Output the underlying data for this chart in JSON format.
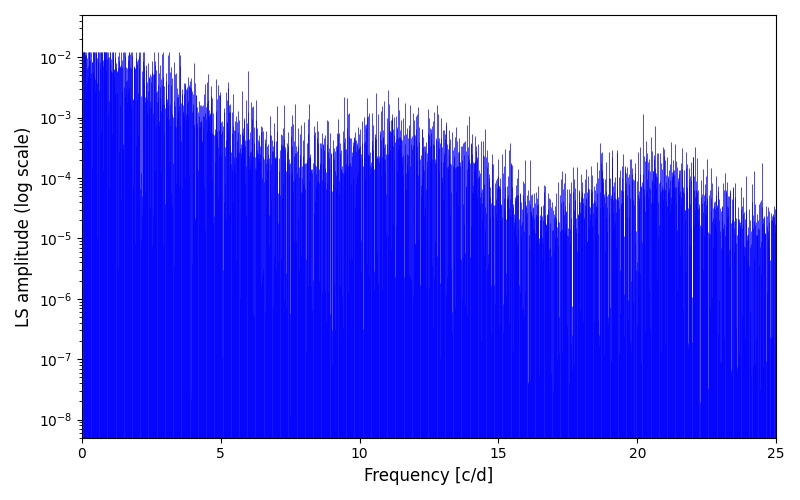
{
  "xlabel": "Frequency [c/d]",
  "ylabel": "LS amplitude (log scale)",
  "xlim": [
    0,
    25
  ],
  "ylim_min": 5e-09,
  "ylim_max": 0.05,
  "yaxis_min_display": 1e-08,
  "yaxis_max_display": 0.01,
  "line_color": "#0000ff",
  "background_color": "#ffffff",
  "figsize": [
    8.0,
    5.0
  ],
  "dpi": 100,
  "seed": 42,
  "n_points": 2000,
  "freq_max": 25.0,
  "xticks": [
    0,
    5,
    10,
    15,
    20,
    25
  ]
}
